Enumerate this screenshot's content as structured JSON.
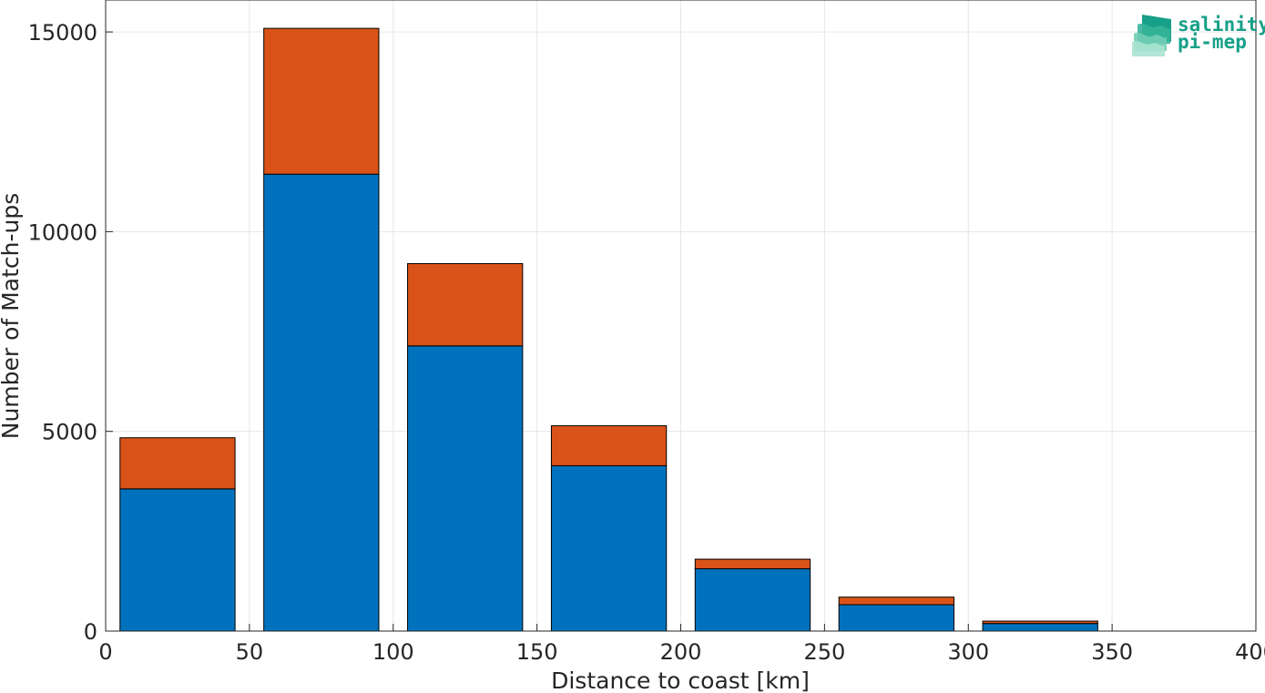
{
  "chart_data": {
    "type": "bar",
    "stacked": true,
    "bin_edges": [
      5,
      45,
      55,
      95,
      105,
      145,
      155,
      195,
      205,
      245,
      255,
      295,
      305,
      345
    ],
    "bins": [
      {
        "x_start": 5,
        "x_end": 45
      },
      {
        "x_start": 55,
        "x_end": 95
      },
      {
        "x_start": 105,
        "x_end": 145
      },
      {
        "x_start": 155,
        "x_end": 195
      },
      {
        "x_start": 205,
        "x_end": 245
      },
      {
        "x_start": 255,
        "x_end": 295
      },
      {
        "x_start": 305,
        "x_end": 345
      }
    ],
    "series": [
      {
        "color": "#0072BD",
        "values": [
          3560,
          11440,
          7140,
          4140,
          1560,
          660,
          190
        ]
      },
      {
        "color": "#D95319",
        "values": [
          1280,
          3650,
          2060,
          1000,
          240,
          190,
          60
        ]
      }
    ],
    "xlabel": "Distance to coast [km]",
    "ylabel": "Number of Match-ups",
    "xlim": [
      0,
      400
    ],
    "ylim": [
      0,
      15800
    ],
    "xticks": [
      0,
      50,
      100,
      150,
      200,
      250,
      300,
      350,
      400
    ],
    "yticks": [
      0,
      5000,
      10000,
      15000
    ],
    "grid": true,
    "legend": "none"
  },
  "logo": {
    "line1": "salinity",
    "line2": "pi-mep",
    "color": "#17a089"
  }
}
